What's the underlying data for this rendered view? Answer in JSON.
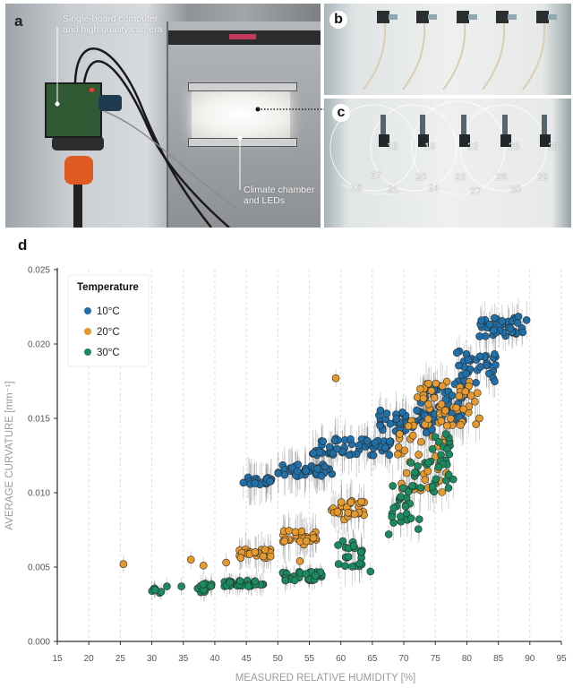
{
  "figure": {
    "panel_a": {
      "letter": "a",
      "label_camera": "Single-board computer and high quality camera",
      "label_camera_line1": "Single-board computer",
      "label_camera_line2": "and high quality camera",
      "label_chamber_line1": "Climate chamber",
      "label_chamber_line2": "and LEDs"
    },
    "panel_b": {
      "letter": "b"
    },
    "panel_c": {
      "letter": "c",
      "frame_numbers": [
        "16",
        "17",
        "18",
        "19",
        "20",
        "21",
        "22",
        "23",
        "24",
        "25",
        "26",
        "27",
        "28",
        "29",
        "30"
      ]
    },
    "panel_d": {
      "letter": "d"
    }
  },
  "chart_data": {
    "type": "scatter",
    "title": "",
    "xlabel": "MEASURED RELATIVE HUMIDITY [%]",
    "ylabel": "AVERAGE CURVATURE [mm⁻¹]",
    "xlim": [
      15,
      95
    ],
    "ylim": [
      0.0,
      0.025
    ],
    "xticks": [
      "15",
      "20",
      "25",
      "30",
      "35",
      "40",
      "45",
      "50",
      "55",
      "60",
      "65",
      "70",
      "75",
      "80",
      "85",
      "90",
      "95"
    ],
    "yticks": [
      "0.000",
      "0.005",
      "0.010",
      "0.015",
      "0.020",
      "0.025"
    ],
    "grid": "vertical dashed",
    "legend": {
      "title": "Temperature",
      "placement": "top-left"
    },
    "error_bars": "vertical grey bars on each point",
    "series": [
      {
        "name": "10°C",
        "color": "#1f6fa8",
        "clusters": [
          {
            "x_range": [
              44.5,
              49
            ],
            "y": 0.0108,
            "y_spread": 0.0003,
            "err": 0.0025
          },
          {
            "x_range": [
              50,
              59
            ],
            "y": 0.0115,
            "y_spread": 0.0004,
            "err": 0.0025
          },
          {
            "x_range": [
              55.5,
              68
            ],
            "y": 0.0131,
            "y_spread": 0.0006,
            "err": 0.0025
          },
          {
            "x_range": [
              66,
              75
            ],
            "y": 0.0148,
            "y_spread": 0.0008,
            "err": 0.0025
          },
          {
            "x_range": [
              72,
              80
            ],
            "y": 0.016,
            "y_spread": 0.0012,
            "err": 0.0025
          },
          {
            "x_range": [
              78,
              85
            ],
            "y": 0.0185,
            "y_spread": 0.0012,
            "err": 0.0025
          },
          {
            "x_range": [
              82,
              90
            ],
            "y": 0.0212,
            "y_spread": 0.0007,
            "err": 0.002
          }
        ]
      },
      {
        "name": "20°C",
        "color": "#e69a2e",
        "points": [
          {
            "x": 25.5,
            "y": 0.0052
          },
          {
            "x": 36.2,
            "y": 0.0055
          },
          {
            "x": 38.2,
            "y": 0.0051
          },
          {
            "x": 41.8,
            "y": 0.0053
          },
          {
            "x": 59.2,
            "y": 0.0177
          },
          {
            "x": 53.5,
            "y": 0.0054
          }
        ],
        "clusters": [
          {
            "x_range": [
              43.5,
              49
            ],
            "y": 0.0059,
            "y_spread": 0.0003,
            "err": 0.002
          },
          {
            "x_range": [
              50.5,
              56.5
            ],
            "y": 0.007,
            "y_spread": 0.0005,
            "err": 0.0025
          },
          {
            "x_range": [
              58.5,
              64
            ],
            "y": 0.0088,
            "y_spread": 0.0007,
            "err": 0.0025
          },
          {
            "x_range": [
              69,
              77
            ],
            "y": 0.0125,
            "y_spread": 0.0025,
            "err": 0.0025
          },
          {
            "x_range": [
              72,
              82
            ],
            "y": 0.016,
            "y_spread": 0.0015,
            "err": 0.0025
          }
        ]
      },
      {
        "name": "30°C",
        "color": "#1a8a5f",
        "points": [
          {
            "x": 32.4,
            "y": 0.0037
          },
          {
            "x": 34.7,
            "y": 0.0037
          },
          {
            "x": 64.7,
            "y": 0.0047
          },
          {
            "x": 67.6,
            "y": 0.0072
          }
        ],
        "clusters": [
          {
            "x_range": [
              30,
              31.5
            ],
            "y": 0.0033,
            "y_spread": 0.0003,
            "err": 0.001
          },
          {
            "x_range": [
              37,
              40
            ],
            "y": 0.0036,
            "y_spread": 0.0003,
            "err": 0.0012
          },
          {
            "x_range": [
              41.5,
              48
            ],
            "y": 0.0039,
            "y_spread": 0.0002,
            "err": 0.0012
          },
          {
            "x_range": [
              50.5,
              57
            ],
            "y": 0.0044,
            "y_spread": 0.0003,
            "err": 0.0012
          },
          {
            "x_range": [
              59,
              63.5
            ],
            "y": 0.0059,
            "y_spread": 0.0009,
            "err": 0.0022
          },
          {
            "x_range": [
              68,
              73
            ],
            "y": 0.009,
            "y_spread": 0.0015,
            "err": 0.0025
          },
          {
            "x_range": [
              71,
              78
            ],
            "y": 0.012,
            "y_spread": 0.002,
            "err": 0.0025
          }
        ]
      }
    ]
  }
}
